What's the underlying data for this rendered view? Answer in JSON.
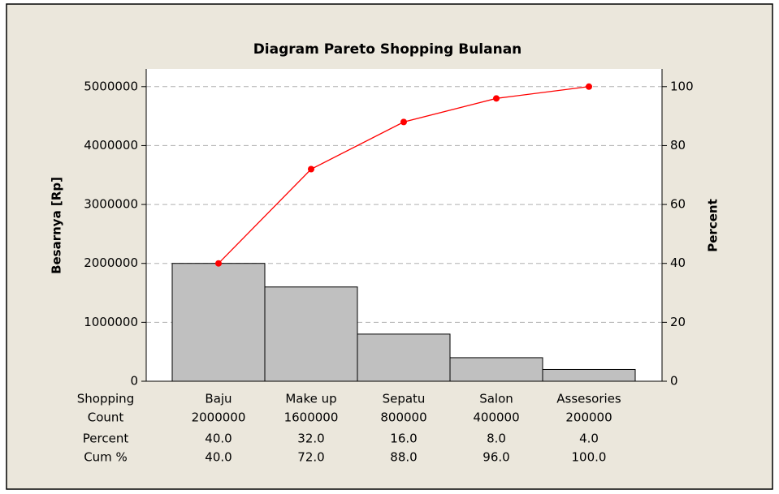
{
  "chart_data": {
    "type": "pareto",
    "title": "Diagram Pareto Shopping Bulanan",
    "ylabel": "Besarnya [Rp]",
    "y2label": "Percent",
    "xlabel": "Shopping",
    "categories": [
      "Baju",
      "Make up",
      "Sepatu",
      "Salon",
      "Assesories"
    ],
    "series": [
      {
        "name": "Count",
        "color": "#c0c0c0",
        "values": [
          2000000,
          1600000,
          800000,
          400000,
          200000
        ]
      },
      {
        "name": "Percent",
        "values": [
          40,
          32,
          16,
          8,
          4
        ],
        "value_labels": [
          "40.0",
          "32.0",
          "16.0",
          "8.0",
          "4.0"
        ]
      },
      {
        "name": "Cum %",
        "color": "#ff0000",
        "axis": "y2",
        "values": [
          40,
          72,
          88,
          96,
          100
        ],
        "value_labels": [
          "40.0",
          "72.0",
          "88.0",
          "96.0",
          "100.0"
        ]
      }
    ],
    "ylim": [
      0,
      5300000
    ],
    "yticks": [
      0,
      1000000,
      2000000,
      3000000,
      4000000,
      5000000
    ],
    "y2lim": [
      0,
      106
    ],
    "y2ticks": [
      0,
      20,
      40,
      60,
      80,
      100
    ],
    "grid": true
  }
}
